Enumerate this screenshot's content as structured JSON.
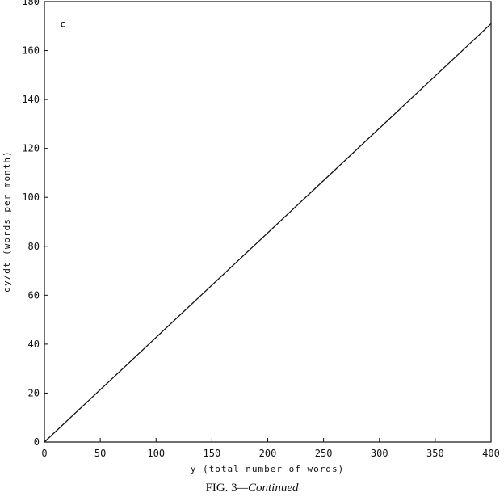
{
  "caption": {
    "fig": "FIG. 3",
    "continued": "—Continued"
  },
  "chart_data": {
    "type": "line",
    "panel_label": "c",
    "xlabel": "y (total number of words)",
    "ylabel": "dy/dt (words per month)",
    "xlim": [
      0,
      400
    ],
    "ylim": [
      0,
      180
    ],
    "xticks": [
      0,
      50,
      100,
      150,
      200,
      250,
      300,
      350,
      400
    ],
    "yticks": [
      0,
      20,
      40,
      60,
      80,
      100,
      120,
      140,
      160,
      180
    ],
    "series": [
      {
        "x": [
          0,
          400
        ],
        "y": [
          0,
          171
        ]
      }
    ],
    "grid": false,
    "legend": "none"
  }
}
